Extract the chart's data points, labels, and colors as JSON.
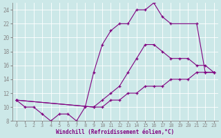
{
  "xlabel": "Windchill (Refroidissement éolien,°C)",
  "background_color": "#cce8e8",
  "grid_color": "#c0d8d8",
  "line_color": "#800080",
  "xlim": [
    -0.5,
    23.5
  ],
  "ylim": [
    8,
    25
  ],
  "xticks": [
    0,
    1,
    2,
    3,
    4,
    5,
    6,
    7,
    8,
    9,
    10,
    11,
    12,
    13,
    14,
    15,
    16,
    17,
    18,
    19,
    20,
    21,
    22,
    23
  ],
  "yticks": [
    8,
    10,
    12,
    14,
    16,
    18,
    20,
    22,
    24
  ],
  "curve_top_x": [
    0,
    1,
    2,
    3,
    4,
    5,
    6,
    7,
    8,
    9,
    10,
    11,
    12,
    13,
    14,
    15,
    16,
    17,
    18,
    21,
    22,
    23
  ],
  "curve_top_y": [
    11,
    10,
    10,
    9,
    8,
    9,
    9,
    8,
    10,
    15,
    19,
    21,
    22,
    22,
    24,
    24,
    25,
    23,
    22,
    22,
    15,
    15
  ],
  "curve_mid_x": [
    0,
    9,
    10,
    11,
    12,
    13,
    14,
    15,
    16,
    17,
    18,
    19,
    20,
    21,
    22,
    23
  ],
  "curve_mid_y": [
    11,
    10,
    11,
    12,
    13,
    15,
    17,
    19,
    19,
    18,
    17,
    17,
    17,
    16,
    16,
    15
  ],
  "curve_bot_x": [
    0,
    9,
    10,
    11,
    12,
    13,
    14,
    15,
    16,
    17,
    18,
    19,
    20,
    21,
    22,
    23
  ],
  "curve_bot_y": [
    11,
    10,
    10,
    11,
    11,
    12,
    12,
    13,
    13,
    13,
    14,
    14,
    14,
    15,
    15,
    15
  ]
}
